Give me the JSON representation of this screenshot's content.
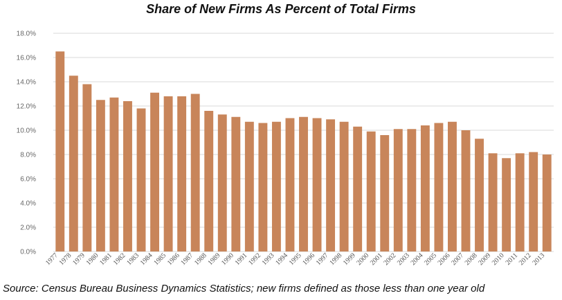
{
  "chart_data": {
    "type": "bar",
    "title": "Share of New Firms As Percent of Total Firms",
    "source": "Source: Census Bureau Business Dynamics Statistics; new firms defined as those less than one year old",
    "categories": [
      "1977",
      "1978",
      "1979",
      "1980",
      "1981",
      "1982",
      "1983",
      "1984",
      "1985",
      "1986",
      "1987",
      "1988",
      "1989",
      "1990",
      "1991",
      "1992",
      "1993",
      "1994",
      "1995",
      "1996",
      "1997",
      "1998",
      "1999",
      "2000",
      "2001",
      "2002",
      "2003",
      "2004",
      "2005",
      "2006",
      "2007",
      "2008",
      "2009",
      "2010",
      "2011",
      "2012",
      "2013"
    ],
    "values": [
      16.5,
      14.5,
      13.8,
      12.5,
      12.7,
      12.4,
      11.8,
      13.1,
      12.8,
      12.8,
      13.0,
      11.6,
      11.3,
      11.1,
      10.7,
      10.6,
      10.7,
      11.0,
      11.1,
      11.0,
      10.9,
      10.7,
      10.3,
      9.9,
      9.6,
      10.1,
      10.1,
      10.4,
      10.6,
      10.7,
      10.0,
      9.3,
      8.1,
      7.7,
      8.1,
      8.2,
      8.0
    ],
    "y_ticks": [
      "0.0%",
      "2.0%",
      "4.0%",
      "6.0%",
      "8.0%",
      "10.0%",
      "12.0%",
      "14.0%",
      "16.0%",
      "18.0%"
    ],
    "ylim": [
      0,
      18
    ],
    "bar_color": "#c8855a",
    "grid_color": "#d9d9d9",
    "grid": true
  }
}
